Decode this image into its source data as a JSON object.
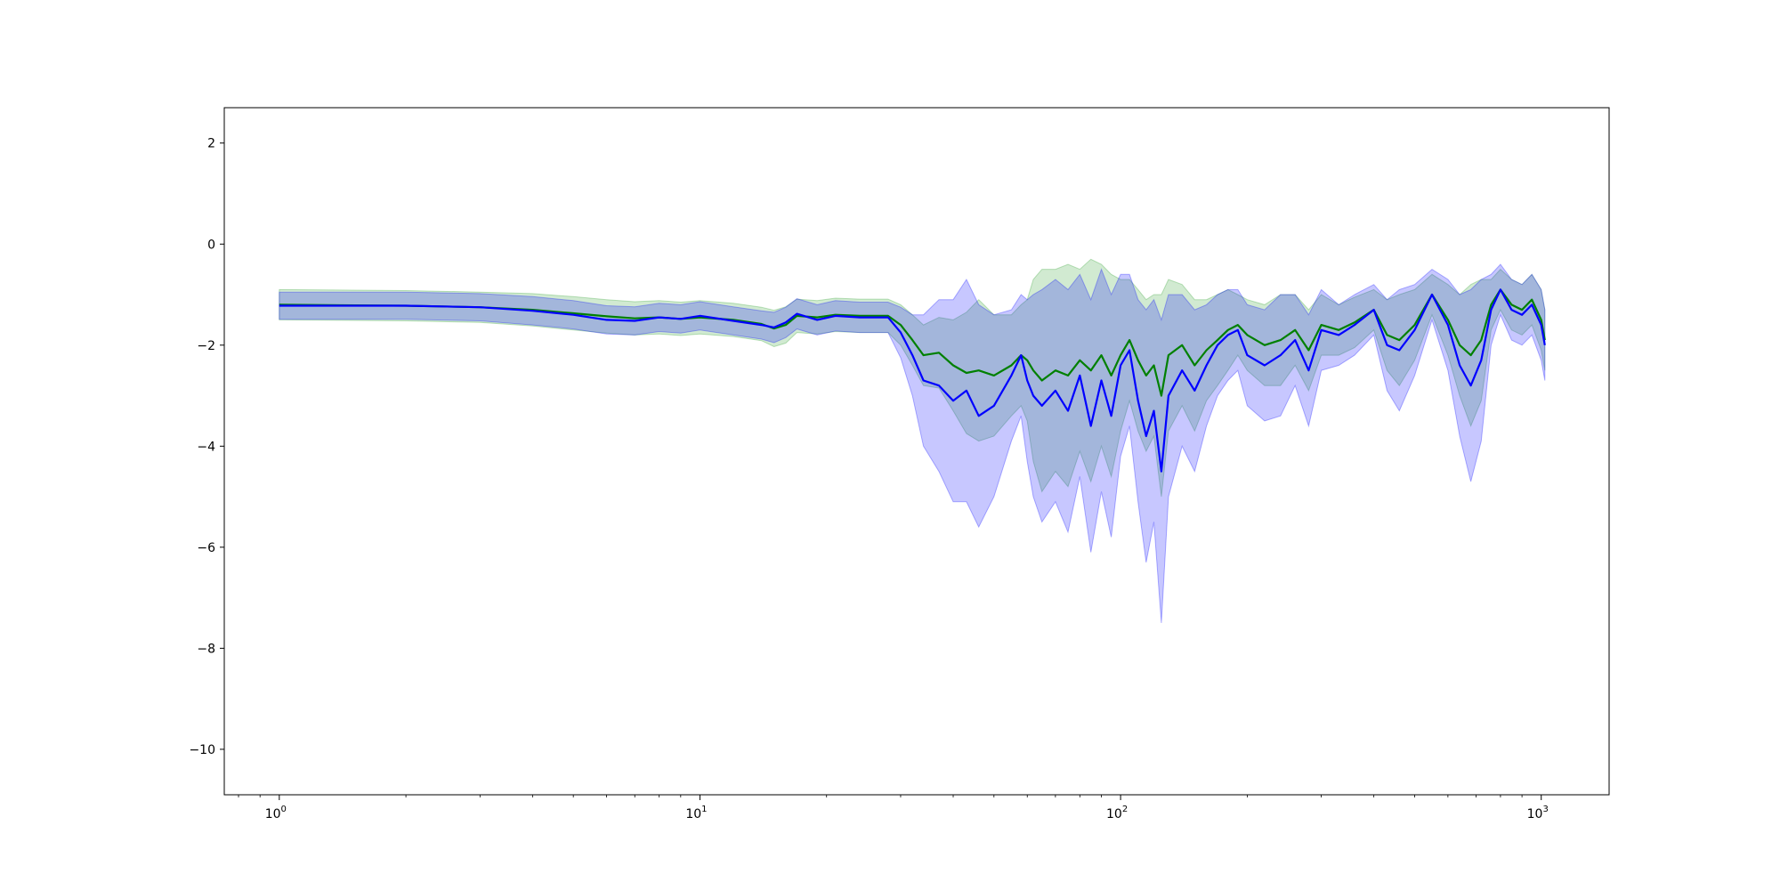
{
  "chart_data": {
    "type": "line",
    "title": "",
    "xlabel": "",
    "ylabel": "",
    "xscale": "log",
    "xlim": [
      0.74,
      1450
    ],
    "ylim": [
      -10.9,
      2.7
    ],
    "grid": false,
    "legend": "none",
    "x_ticks": [
      {
        "value": 1,
        "base": "10",
        "exp": "0"
      },
      {
        "value": 10,
        "base": "10",
        "exp": "1"
      },
      {
        "value": 100,
        "base": "10",
        "exp": "2"
      },
      {
        "value": 1000,
        "base": "10",
        "exp": "3"
      }
    ],
    "y_ticks": [
      {
        "value": 2,
        "label": "2"
      },
      {
        "value": 0,
        "label": "0"
      },
      {
        "value": -2,
        "label": "−2"
      },
      {
        "value": -4,
        "label": "−4"
      },
      {
        "value": -6,
        "label": "−6"
      },
      {
        "value": -8,
        "label": "−8"
      },
      {
        "value": -10,
        "label": "−10"
      }
    ],
    "series": [
      {
        "color": "#008000",
        "band_color": "#2ca02c",
        "points": [
          [
            1,
            -1.2,
            0.3
          ],
          [
            2,
            -1.22,
            0.3
          ],
          [
            3,
            -1.25,
            0.3
          ],
          [
            4,
            -1.3,
            0.32
          ],
          [
            5,
            -1.37,
            0.33
          ],
          [
            6,
            -1.43,
            0.33
          ],
          [
            7,
            -1.47,
            0.33
          ],
          [
            8,
            -1.45,
            0.33
          ],
          [
            9,
            -1.48,
            0.33
          ],
          [
            10,
            -1.45,
            0.33
          ],
          [
            12,
            -1.5,
            0.33
          ],
          [
            14,
            -1.58,
            0.33
          ],
          [
            15,
            -1.67,
            0.36
          ],
          [
            16,
            -1.6,
            0.36
          ],
          [
            17,
            -1.42,
            0.33
          ],
          [
            19,
            -1.45,
            0.33
          ],
          [
            21,
            -1.4,
            0.33
          ],
          [
            24,
            -1.42,
            0.33
          ],
          [
            28,
            -1.42,
            0.33
          ],
          [
            30,
            -1.6,
            0.4
          ],
          [
            32,
            -1.9,
            0.5
          ],
          [
            34,
            -2.2,
            0.6
          ],
          [
            37,
            -2.15,
            0.7
          ],
          [
            40,
            -2.4,
            0.9
          ],
          [
            43,
            -2.55,
            1.2
          ],
          [
            46,
            -2.5,
            1.4
          ],
          [
            50,
            -2.6,
            1.2
          ],
          [
            55,
            -2.4,
            1.0
          ],
          [
            58,
            -2.2,
            1.0
          ],
          [
            60,
            -2.3,
            1.2
          ],
          [
            62,
            -2.5,
            1.8
          ],
          [
            65,
            -2.7,
            2.2
          ],
          [
            70,
            -2.5,
            2.0
          ],
          [
            75,
            -2.6,
            2.2
          ],
          [
            80,
            -2.3,
            1.8
          ],
          [
            85,
            -2.5,
            2.2
          ],
          [
            90,
            -2.2,
            1.8
          ],
          [
            95,
            -2.6,
            2.0
          ],
          [
            100,
            -2.2,
            1.5
          ],
          [
            105,
            -1.9,
            1.2
          ],
          [
            110,
            -2.3,
            1.4
          ],
          [
            115,
            -2.6,
            1.5
          ],
          [
            120,
            -2.4,
            1.4
          ],
          [
            125,
            -3.0,
            2.0
          ],
          [
            130,
            -2.2,
            1.5
          ],
          [
            140,
            -2.0,
            1.2
          ],
          [
            150,
            -2.4,
            1.3
          ],
          [
            160,
            -2.1,
            1.0
          ],
          [
            170,
            -1.9,
            0.9
          ],
          [
            180,
            -1.7,
            0.8
          ],
          [
            190,
            -1.6,
            0.6
          ],
          [
            200,
            -1.8,
            0.7
          ],
          [
            220,
            -2.0,
            0.8
          ],
          [
            240,
            -1.9,
            0.9
          ],
          [
            260,
            -1.7,
            0.7
          ],
          [
            280,
            -2.1,
            0.8
          ],
          [
            300,
            -1.6,
            0.6
          ],
          [
            330,
            -1.7,
            0.5
          ],
          [
            360,
            -1.55,
            0.5
          ],
          [
            400,
            -1.3,
            0.4
          ],
          [
            430,
            -1.8,
            0.7
          ],
          [
            460,
            -1.9,
            0.9
          ],
          [
            500,
            -1.6,
            0.7
          ],
          [
            550,
            -1.0,
            0.4
          ],
          [
            600,
            -1.5,
            0.7
          ],
          [
            640,
            -2.0,
            1.0
          ],
          [
            680,
            -2.2,
            1.4
          ],
          [
            720,
            -1.9,
            1.2
          ],
          [
            760,
            -1.2,
            0.5
          ],
          [
            800,
            -0.9,
            0.4
          ],
          [
            850,
            -1.2,
            0.5
          ],
          [
            900,
            -1.3,
            0.5
          ],
          [
            950,
            -1.1,
            0.5
          ],
          [
            1000,
            -1.5,
            0.6
          ],
          [
            1020,
            -1.9,
            0.6
          ]
        ]
      },
      {
        "color": "#0000ff",
        "band_color": "#0000ff",
        "points": [
          [
            1,
            -1.22,
            0.27
          ],
          [
            2,
            -1.22,
            0.27
          ],
          [
            3,
            -1.25,
            0.27
          ],
          [
            4,
            -1.32,
            0.28
          ],
          [
            5,
            -1.4,
            0.28
          ],
          [
            6,
            -1.5,
            0.28
          ],
          [
            7,
            -1.52,
            0.28
          ],
          [
            8,
            -1.45,
            0.28
          ],
          [
            9,
            -1.48,
            0.28
          ],
          [
            10,
            -1.42,
            0.28
          ],
          [
            12,
            -1.52,
            0.28
          ],
          [
            14,
            -1.6,
            0.28
          ],
          [
            15,
            -1.65,
            0.3
          ],
          [
            16,
            -1.55,
            0.3
          ],
          [
            17,
            -1.38,
            0.3
          ],
          [
            19,
            -1.5,
            0.3
          ],
          [
            21,
            -1.42,
            0.3
          ],
          [
            24,
            -1.45,
            0.3
          ],
          [
            28,
            -1.45,
            0.3
          ],
          [
            30,
            -1.75,
            0.5
          ],
          [
            32,
            -2.2,
            0.8
          ],
          [
            34,
            -2.7,
            1.3
          ],
          [
            37,
            -2.8,
            1.7
          ],
          [
            40,
            -3.1,
            2.0
          ],
          [
            43,
            -2.9,
            2.2
          ],
          [
            46,
            -3.4,
            2.2
          ],
          [
            50,
            -3.2,
            1.8
          ],
          [
            55,
            -2.6,
            1.3
          ],
          [
            58,
            -2.2,
            1.2
          ],
          [
            60,
            -2.7,
            1.6
          ],
          [
            62,
            -3.0,
            2.0
          ],
          [
            65,
            -3.2,
            2.3
          ],
          [
            70,
            -2.9,
            2.2
          ],
          [
            75,
            -3.3,
            2.4
          ],
          [
            80,
            -2.6,
            2.0
          ],
          [
            85,
            -3.6,
            2.5
          ],
          [
            90,
            -2.7,
            2.2
          ],
          [
            95,
            -3.4,
            2.4
          ],
          [
            100,
            -2.4,
            1.8
          ],
          [
            105,
            -2.1,
            1.5
          ],
          [
            110,
            -3.1,
            2.0
          ],
          [
            115,
            -3.8,
            2.5
          ],
          [
            120,
            -3.3,
            2.2
          ],
          [
            125,
            -4.5,
            3.0
          ],
          [
            130,
            -3.0,
            2.0
          ],
          [
            140,
            -2.5,
            1.5
          ],
          [
            150,
            -2.9,
            1.6
          ],
          [
            160,
            -2.4,
            1.2
          ],
          [
            170,
            -2.0,
            1.0
          ],
          [
            180,
            -1.8,
            0.9
          ],
          [
            190,
            -1.7,
            0.8
          ],
          [
            200,
            -2.2,
            1.0
          ],
          [
            220,
            -2.4,
            1.1
          ],
          [
            240,
            -2.2,
            1.2
          ],
          [
            260,
            -1.9,
            0.9
          ],
          [
            280,
            -2.5,
            1.1
          ],
          [
            300,
            -1.7,
            0.8
          ],
          [
            330,
            -1.8,
            0.6
          ],
          [
            360,
            -1.6,
            0.6
          ],
          [
            400,
            -1.3,
            0.5
          ],
          [
            430,
            -2.0,
            0.9
          ],
          [
            460,
            -2.1,
            1.2
          ],
          [
            500,
            -1.7,
            0.9
          ],
          [
            550,
            -1.0,
            0.5
          ],
          [
            600,
            -1.6,
            0.9
          ],
          [
            640,
            -2.4,
            1.4
          ],
          [
            680,
            -2.8,
            1.9
          ],
          [
            720,
            -2.3,
            1.6
          ],
          [
            760,
            -1.3,
            0.7
          ],
          [
            800,
            -0.9,
            0.5
          ],
          [
            850,
            -1.3,
            0.6
          ],
          [
            900,
            -1.4,
            0.6
          ],
          [
            950,
            -1.2,
            0.6
          ],
          [
            1000,
            -1.6,
            0.7
          ],
          [
            1020,
            -2.0,
            0.7
          ]
        ]
      }
    ]
  }
}
